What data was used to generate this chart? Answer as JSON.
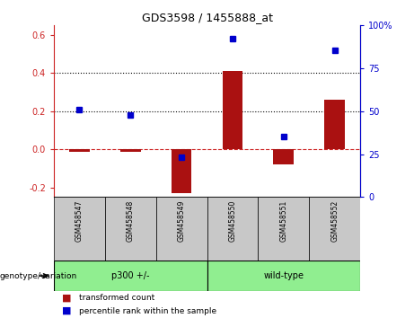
{
  "title": "GDS3598 / 1455888_at",
  "samples": [
    "GSM458547",
    "GSM458548",
    "GSM458549",
    "GSM458550",
    "GSM458551",
    "GSM458552"
  ],
  "red_bars": [
    -0.01,
    -0.01,
    -0.23,
    0.41,
    -0.08,
    0.26
  ],
  "blue_dots_left_scale": [
    0.21,
    0.18,
    -0.04,
    0.58,
    0.07,
    0.52
  ],
  "ylim_left": [
    -0.25,
    0.65
  ],
  "ylim_right": [
    0,
    100
  ],
  "yticks_left": [
    -0.2,
    0.0,
    0.2,
    0.4,
    0.6
  ],
  "yticks_right": [
    0,
    25,
    50,
    75,
    100
  ],
  "hlines": [
    0.0,
    0.2,
    0.4
  ],
  "hline_styles": [
    "dashed",
    "dotted",
    "dotted"
  ],
  "hline_colors": [
    "#CC2222",
    "#000000",
    "#000000"
  ],
  "bar_color": "#AA1111",
  "dot_color": "#0000CC",
  "bg_color": "#FFFFFF",
  "tick_label_color_left": "#CC2222",
  "tick_label_color_right": "#0000CC",
  "gray_box_color": "#C8C8C8",
  "green_box_color": "#90EE90",
  "legend_red_label": "transformed count",
  "legend_blue_label": "percentile rank within the sample",
  "genotype_label": "genotype/variation",
  "group_info": [
    [
      "p300 +/-",
      0,
      3
    ],
    [
      "wild-type",
      3,
      6
    ]
  ],
  "bar_width": 0.4,
  "fontsize_ticks": 7,
  "fontsize_title": 9,
  "fontsize_sample": 5.5,
  "fontsize_group": 7,
  "fontsize_legend": 6.5,
  "fontsize_genotype": 6.5
}
